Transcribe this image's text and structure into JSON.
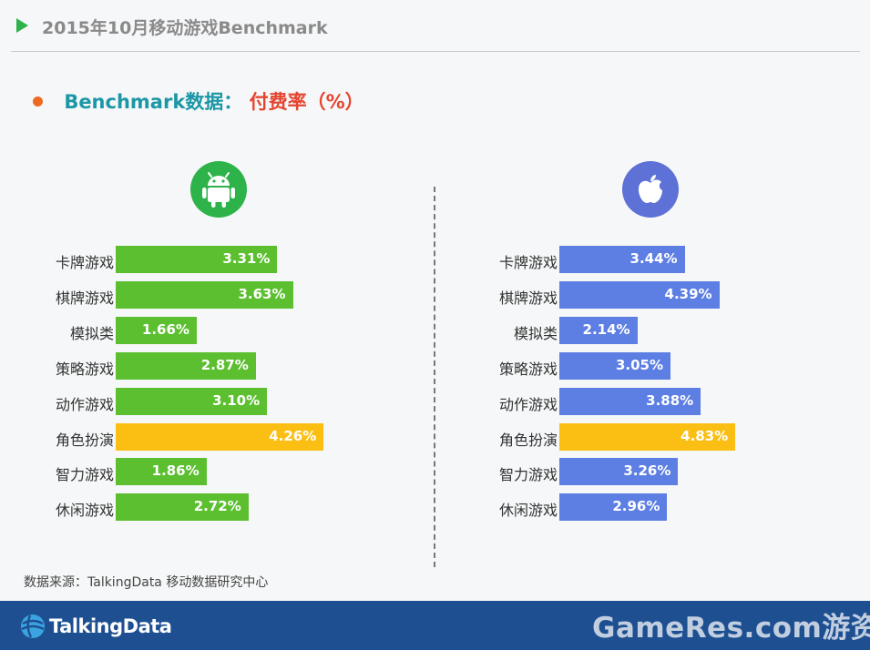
{
  "header": {
    "title": "2015年10月移动游戏Benchmark"
  },
  "subtitle": {
    "part1": "Benchmark数据：",
    "part2": "付费率（%）"
  },
  "icons": {
    "left": "android-icon",
    "right": "apple-icon"
  },
  "colors": {
    "android_bar": "#5bbf2f",
    "ios_bar": "#5d7fe3",
    "highlight_bar": "#fbbf14"
  },
  "chart_data": [
    {
      "type": "bar",
      "platform_icon": "android",
      "orientation": "horizontal",
      "categories": [
        "卡牌游戏",
        "棋牌游戏",
        "模拟类",
        "策略游戏",
        "动作游戏",
        "角色扮演",
        "智力游戏",
        "休闲游戏"
      ],
      "values": [
        3.31,
        3.63,
        1.66,
        2.87,
        3.1,
        4.26,
        1.86,
        2.72
      ],
      "labels": [
        "3.31%",
        "3.63%",
        "1.66%",
        "2.87%",
        "3.10%",
        "4.26%",
        "1.86%",
        "2.72%"
      ],
      "highlight_index": 5,
      "xlim": [
        0,
        5.3
      ],
      "grid": false
    },
    {
      "type": "bar",
      "platform_icon": "apple",
      "orientation": "horizontal",
      "categories": [
        "卡牌游戏",
        "棋牌游戏",
        "模拟类",
        "策略游戏",
        "动作游戏",
        "角色扮演",
        "智力游戏",
        "休闲游戏"
      ],
      "values": [
        3.44,
        4.39,
        2.14,
        3.05,
        3.88,
        4.83,
        3.26,
        2.96
      ],
      "labels": [
        "3.44%",
        "4.39%",
        "2.14%",
        "3.05%",
        "3.88%",
        "4.83%",
        "3.26%",
        "2.96%"
      ],
      "highlight_index": 5,
      "xlim": [
        0,
        7.1
      ],
      "grid": false
    }
  ],
  "source": "数据来源：TalkingData 移动数据研究中心",
  "footer": {
    "logo_text": "TalkingData",
    "watermark": "GameRes.com游资网"
  }
}
